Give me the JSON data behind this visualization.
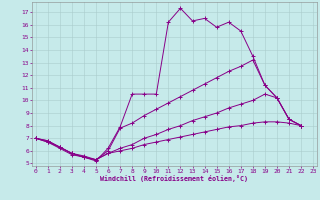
{
  "bg_color": "#c6eaea",
  "line_color": "#880088",
  "grid_color": "#aacccc",
  "xlabel": "Windchill (Refroidissement éolien,°C)",
  "ylabel_ticks": [
    5,
    6,
    7,
    8,
    9,
    10,
    11,
    12,
    13,
    14,
    15,
    16,
    17
  ],
  "xlabel_ticks": [
    0,
    1,
    2,
    3,
    4,
    5,
    6,
    7,
    8,
    9,
    10,
    11,
    12,
    13,
    14,
    15,
    16,
    17,
    18,
    19,
    20,
    21,
    22,
    23
  ],
  "xlim": [
    -0.3,
    23.3
  ],
  "ylim": [
    4.8,
    17.8
  ],
  "series1": [
    [
      0,
      7.0
    ],
    [
      1,
      6.7
    ],
    [
      2,
      6.2
    ],
    [
      3,
      5.7
    ],
    [
      4,
      5.5
    ],
    [
      5,
      5.2
    ],
    [
      6,
      6.2
    ],
    [
      7,
      7.9
    ],
    [
      8,
      10.5
    ],
    [
      9,
      10.5
    ],
    [
      10,
      10.5
    ],
    [
      11,
      16.2
    ],
    [
      12,
      17.3
    ],
    [
      13,
      16.3
    ],
    [
      14,
      16.5
    ],
    [
      15,
      15.8
    ],
    [
      16,
      16.2
    ],
    [
      17,
      15.5
    ],
    [
      18,
      13.5
    ],
    [
      19,
      11.2
    ],
    [
      20,
      10.2
    ],
    [
      21,
      8.5
    ],
    [
      22,
      8.0
    ]
  ],
  "series2": [
    [
      0,
      7.0
    ],
    [
      1,
      6.7
    ],
    [
      2,
      6.3
    ],
    [
      3,
      5.8
    ],
    [
      4,
      5.5
    ],
    [
      5,
      5.3
    ],
    [
      6,
      6.0
    ],
    [
      7,
      7.8
    ],
    [
      8,
      8.2
    ],
    [
      9,
      8.8
    ],
    [
      10,
      9.3
    ],
    [
      11,
      9.8
    ],
    [
      12,
      10.3
    ],
    [
      13,
      10.8
    ],
    [
      14,
      11.3
    ],
    [
      15,
      11.8
    ],
    [
      16,
      12.3
    ],
    [
      17,
      12.7
    ],
    [
      18,
      13.2
    ],
    [
      19,
      11.2
    ],
    [
      20,
      10.2
    ],
    [
      21,
      8.5
    ],
    [
      22,
      8.0
    ]
  ],
  "series3": [
    [
      0,
      7.0
    ],
    [
      1,
      6.8
    ],
    [
      2,
      6.3
    ],
    [
      3,
      5.8
    ],
    [
      4,
      5.6
    ],
    [
      5,
      5.3
    ],
    [
      6,
      5.8
    ],
    [
      7,
      6.2
    ],
    [
      8,
      6.5
    ],
    [
      9,
      7.0
    ],
    [
      10,
      7.3
    ],
    [
      11,
      7.7
    ],
    [
      12,
      8.0
    ],
    [
      13,
      8.4
    ],
    [
      14,
      8.7
    ],
    [
      15,
      9.0
    ],
    [
      16,
      9.4
    ],
    [
      17,
      9.7
    ],
    [
      18,
      10.0
    ],
    [
      19,
      10.5
    ],
    [
      20,
      10.2
    ],
    [
      21,
      8.5
    ],
    [
      22,
      8.0
    ]
  ],
  "series4": [
    [
      0,
      7.0
    ],
    [
      1,
      6.8
    ],
    [
      2,
      6.3
    ],
    [
      3,
      5.8
    ],
    [
      4,
      5.5
    ],
    [
      5,
      5.3
    ],
    [
      6,
      5.8
    ],
    [
      7,
      6.0
    ],
    [
      8,
      6.2
    ],
    [
      9,
      6.5
    ],
    [
      10,
      6.7
    ],
    [
      11,
      6.9
    ],
    [
      12,
      7.1
    ],
    [
      13,
      7.3
    ],
    [
      14,
      7.5
    ],
    [
      15,
      7.7
    ],
    [
      16,
      7.9
    ],
    [
      17,
      8.0
    ],
    [
      18,
      8.2
    ],
    [
      19,
      8.3
    ],
    [
      20,
      8.3
    ],
    [
      21,
      8.2
    ],
    [
      22,
      8.0
    ]
  ]
}
